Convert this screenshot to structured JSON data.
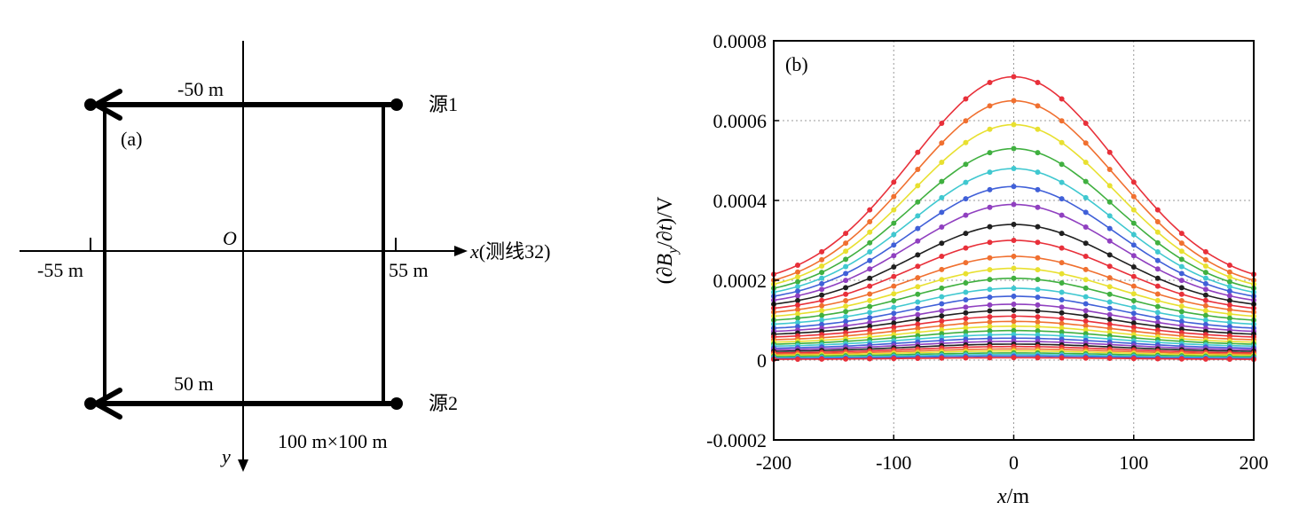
{
  "panel_a": {
    "label": "(a)",
    "origin_label": "O",
    "x_axis_label_italic": "x",
    "x_axis_label_rest": "(测线32)",
    "y_axis_label": "y",
    "tick_left_label": "-55 m",
    "tick_right_label": "55 m",
    "wire_top_label": "-50 m",
    "wire_bottom_label": "50 m",
    "source1_label": "源1",
    "source2_label": "源2",
    "loop_size_label": "100 m×100 m"
  },
  "chart_data": {
    "type": "line",
    "panel_label": "(b)",
    "xlabel_italic": "x",
    "xlabel_rest": "/m",
    "ylabel_parts": [
      "(",
      "∂",
      "B",
      "y",
      "/∂",
      "t",
      ")",
      "/V"
    ],
    "xlim": [
      -200,
      200
    ],
    "ylim": [
      -0.0002,
      0.0008
    ],
    "x_ticks": [
      -200,
      -100,
      0,
      100,
      200
    ],
    "x_tick_labels": [
      "-200",
      "-100",
      "0",
      "100",
      "200"
    ],
    "y_ticks": [
      -0.0002,
      0,
      0.0002,
      0.0004,
      0.0006,
      0.0008
    ],
    "y_tick_labels": [
      "-0.0002",
      "0",
      "0.0002",
      "0.0004",
      "0.0006",
      "0.0008"
    ],
    "grid": true,
    "x": [
      -200,
      -180,
      -160,
      -140,
      -120,
      -100,
      -80,
      -60,
      -40,
      -20,
      0,
      20,
      40,
      60,
      80,
      100,
      120,
      140,
      160,
      180,
      200
    ],
    "peaks": [
      0.00071,
      0.00065,
      0.00059,
      0.00053,
      0.00048,
      0.000435,
      0.00039,
      0.00034,
      0.0003,
      0.00026,
      0.00023,
      0.000205,
      0.00018,
      0.00016,
      0.00014,
      0.000125,
      0.00011,
      9.7e-05,
      8.5e-05,
      7.4e-05,
      6.4e-05,
      5.5e-05,
      4.7e-05,
      4e-05,
      3.4e-05,
      2.8e-05,
      2.3e-05,
      1.8e-05,
      1.4e-05,
      1e-05,
      6e-06
    ],
    "edges": [
      0.000215,
      0.0002,
      0.00019,
      0.00018,
      0.00017,
      0.00016,
      0.00015,
      0.00014,
      0.00013,
      0.00012,
      0.00011,
      0.0001,
      9e-05,
      8e-05,
      7.2e-05,
      6.5e-05,
      5.8e-05,
      5.1e-05,
      4.5e-05,
      4e-05,
      3.5e-05,
      3e-05,
      2.6e-05,
      2.2e-05,
      1.8e-05,
      1.5e-05,
      1.2e-05,
      9e-06,
      6e-06,
      4e-06,
      2e-06
    ],
    "series_colors": [
      "#e8303a",
      "#f07030",
      "#e8e030",
      "#40b040",
      "#40c8d0",
      "#4060d8",
      "#9040c0",
      "#202020",
      "#e8303a",
      "#f07030",
      "#e8e030",
      "#40b040",
      "#40c8d0",
      "#4060d8",
      "#9040c0",
      "#202020",
      "#e8303a",
      "#f07030",
      "#e8e030",
      "#40b040",
      "#40c8d0",
      "#4060d8",
      "#9040c0",
      "#202020",
      "#e8303a",
      "#f07030",
      "#e8e030",
      "#40b040",
      "#40c8d0",
      "#4060d8",
      "#e8303a"
    ]
  }
}
